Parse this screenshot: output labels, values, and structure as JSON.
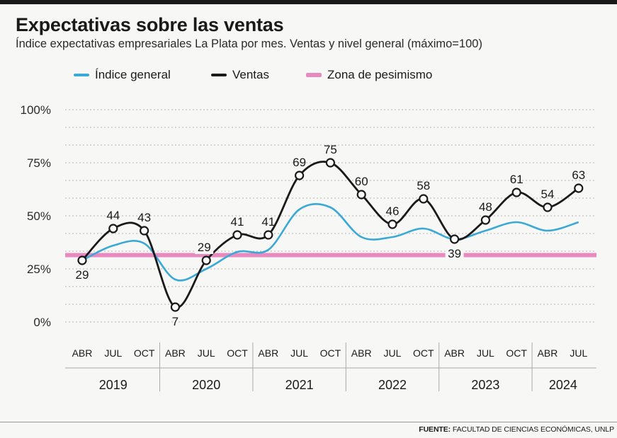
{
  "title": "Expectativas sobre las ventas",
  "subtitle": "Índice expectativas empresariales La Plata por mes. Ventas y nivel general (máximo=100)",
  "source": {
    "label": "FUENTE:",
    "text": "FACULTAD DE CIENCIAS ECONÓMICAS, UNLP"
  },
  "colors": {
    "indice": "#3aa9d6",
    "ventas": "#1a1a1a",
    "pesimismo": "#e889c0",
    "grid": "#b5b5b5"
  },
  "chart_data": {
    "type": "line",
    "title": "Expectativas sobre las ventas",
    "ylim": [
      0,
      100
    ],
    "y_ticks": [
      0,
      25,
      50,
      75,
      100
    ],
    "y_tick_labels": [
      "0%",
      "25%",
      "50%",
      "75%",
      "100%"
    ],
    "grid": true,
    "legend_position": "top-left",
    "categories": [
      "ABR",
      "JUL",
      "OCT",
      "ABR",
      "JUL",
      "OCT",
      "ABR",
      "JUL",
      "OCT",
      "ABR",
      "JUL",
      "OCT",
      "ABR",
      "JUL",
      "OCT",
      "ABR",
      "JUL"
    ],
    "years": [
      {
        "label": "2019",
        "start": 0,
        "end": 2
      },
      {
        "label": "2020",
        "start": 3,
        "end": 5
      },
      {
        "label": "2021",
        "start": 6,
        "end": 8
      },
      {
        "label": "2022",
        "start": 9,
        "end": 11
      },
      {
        "label": "2023",
        "start": 12,
        "end": 14
      },
      {
        "label": "2024",
        "start": 15,
        "end": 16
      }
    ],
    "series": [
      {
        "name": "Índice general",
        "key": "indice",
        "values": [
          29,
          36,
          37,
          20,
          25,
          33,
          34,
          53,
          54,
          40,
          40,
          44,
          39,
          43,
          47,
          43,
          47
        ]
      },
      {
        "name": "Ventas",
        "key": "ventas",
        "values": [
          29,
          44,
          43,
          7,
          29,
          41,
          41,
          69,
          75,
          60,
          46,
          58,
          39,
          48,
          61,
          54,
          63
        ],
        "labels": [
          "29",
          "44",
          "43",
          "7",
          "29",
          "41",
          "41",
          "69",
          "75",
          "60",
          "46",
          "58",
          "39",
          "48",
          "61",
          "54",
          "63"
        ]
      },
      {
        "name": "Zona de pesimismo",
        "key": "pesimismo",
        "value": 31.5
      }
    ]
  }
}
